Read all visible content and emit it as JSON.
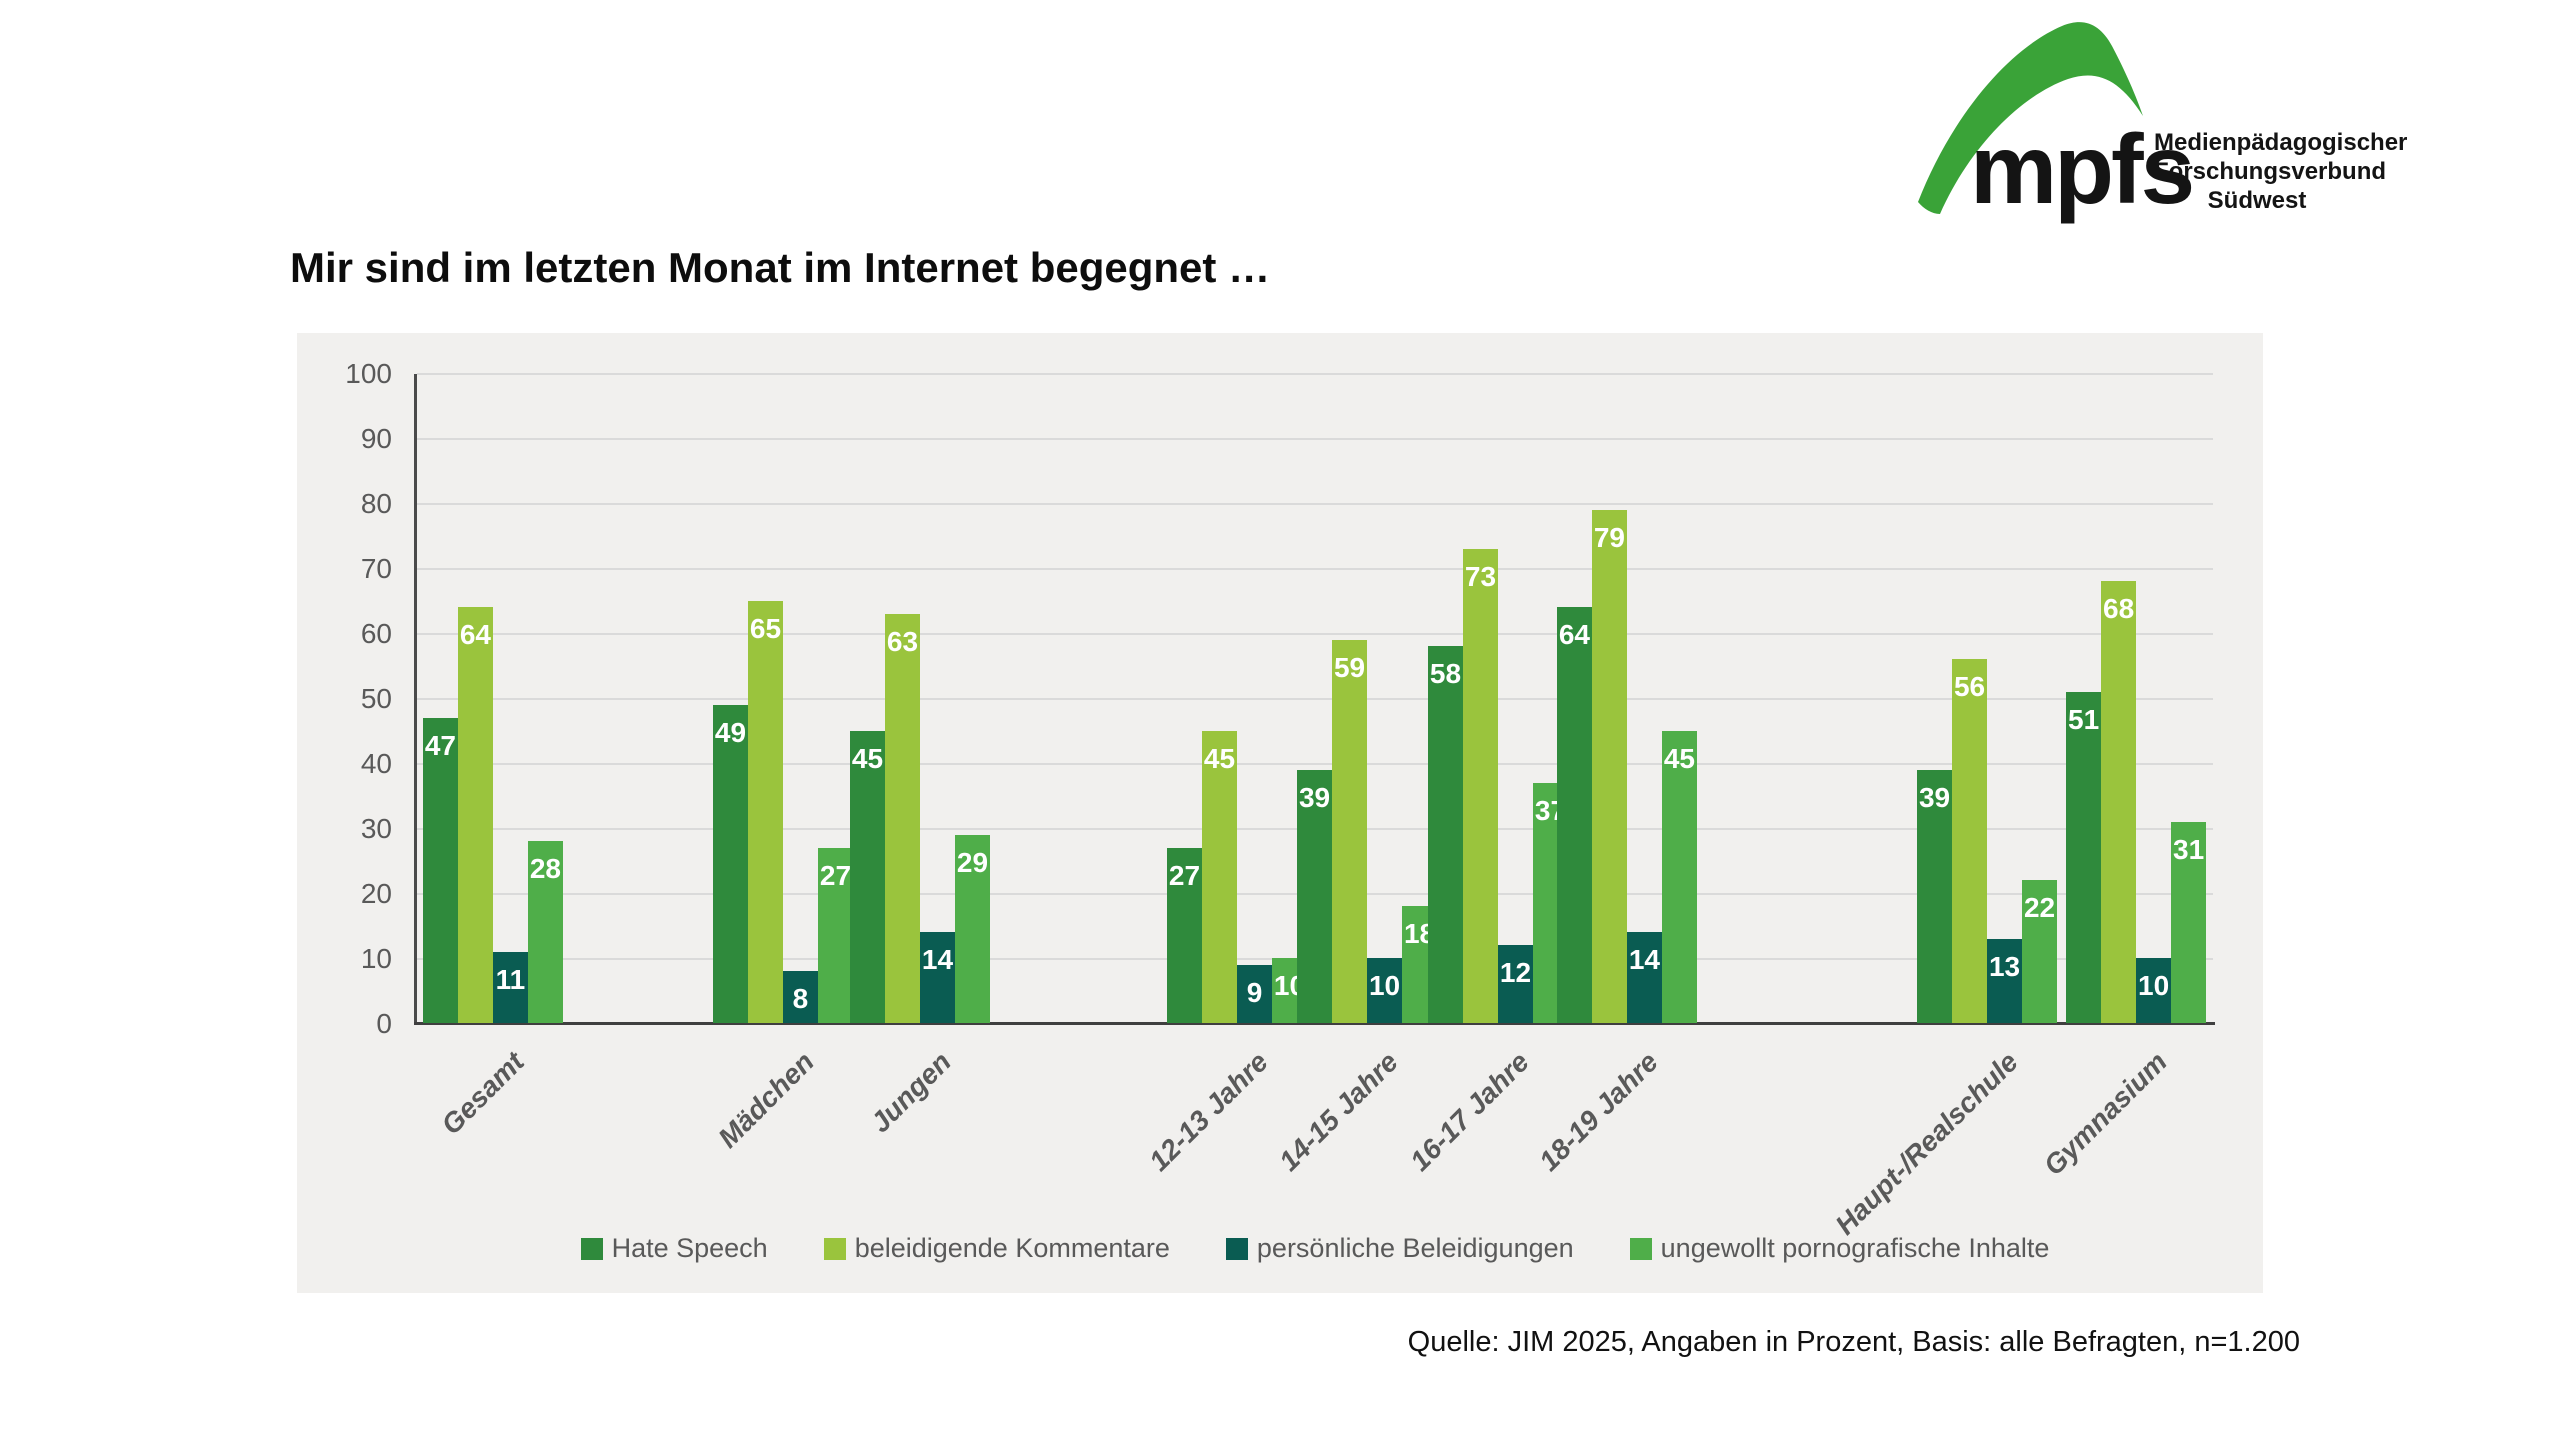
{
  "logo": {
    "wordmark": "mpfs",
    "org_lines": [
      "Medienpädagogischer",
      "Forschungsverbund",
      "Südwest"
    ],
    "green": "#3aa338"
  },
  "title": "Mir sind im letzten Monat im Internet begegnet …",
  "source": "Quelle: JIM 2025, Angaben in Prozent, Basis: alle Befragten, n=1.200",
  "chart_data": {
    "type": "bar",
    "title": "Mir sind im letzten Monat im Internet begegnet …",
    "categories": [
      "Gesamt",
      "Mädchen",
      "Jungen",
      "12-13 Jahre",
      "14-15 Jahre",
      "16-17 Jahre",
      "18-19 Jahre",
      "Haupt-/Realschule",
      "Gymnasium"
    ],
    "series": [
      {
        "name": "Hate Speech",
        "color": "#2f8a3c",
        "values": [
          47,
          49,
          45,
          27,
          39,
          58,
          64,
          39,
          51
        ]
      },
      {
        "name": "beleidigende Kommentare",
        "color": "#9ac43d",
        "values": [
          64,
          65,
          63,
          45,
          59,
          73,
          79,
          56,
          68
        ]
      },
      {
        "name": "persönliche Beleidigungen",
        "color": "#0a5c52",
        "values": [
          11,
          8,
          14,
          9,
          10,
          12,
          14,
          13,
          10
        ]
      },
      {
        "name": "ungewollt pornografische Inhalte",
        "color": "#4fae49",
        "values": [
          28,
          27,
          29,
          10,
          18,
          37,
          45,
          22,
          31
        ]
      }
    ],
    "xlabel": "",
    "ylabel": "",
    "ylim": [
      0,
      100
    ],
    "ytick_step": 10,
    "grid": true,
    "legend_position": "bottom",
    "value_labels": true,
    "panel_background": "#f1f0ee",
    "gridline_color": "#dadada",
    "axis_color": "#3f3f3f",
    "tick_label_color": "#595959"
  }
}
